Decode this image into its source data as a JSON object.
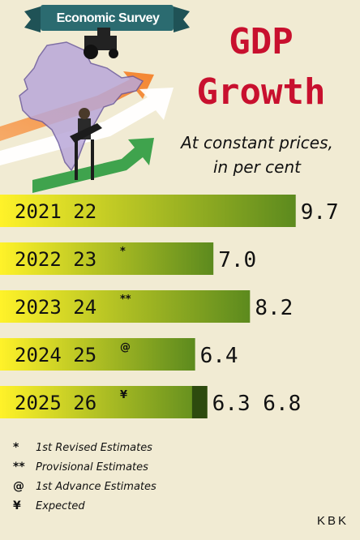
{
  "banner": {
    "text": "Economic Survey"
  },
  "title": {
    "line1": "GDP",
    "line2": "Growth"
  },
  "subtitle": {
    "line1": "At constant prices,",
    "line2": "in per cent"
  },
  "chart_data": {
    "type": "bar",
    "orientation": "horizontal",
    "categories": [
      "2021 22",
      "2022 23",
      "2023 24",
      "2024 25",
      "2025 26"
    ],
    "category_marks": [
      "",
      "*",
      "**",
      "@",
      "¥"
    ],
    "values": [
      9.7,
      7.0,
      8.2,
      6.4,
      6.8
    ],
    "range_low": [
      null,
      null,
      null,
      null,
      6.3
    ],
    "value_labels": [
      "9.7",
      "7.0",
      "8.2",
      "6.4",
      "6.3 6.8"
    ],
    "xlim": [
      0,
      10
    ],
    "colors": {
      "bar_start": "#fff229",
      "bar_end": "#5c8a1e",
      "range_fill": "#2d4a0e"
    }
  },
  "notes": [
    {
      "mark": "*",
      "text": "1st Revised Estimates"
    },
    {
      "mark": "**",
      "text": "Provisional Estimates"
    },
    {
      "mark": "@",
      "text": "1st Advance Estimates"
    },
    {
      "mark": "¥",
      "text": "Expected"
    }
  ],
  "credit": "KBK",
  "colors": {
    "background": "#f1ebd3",
    "title": "#c8102e",
    "banner": "#2b6b70"
  }
}
